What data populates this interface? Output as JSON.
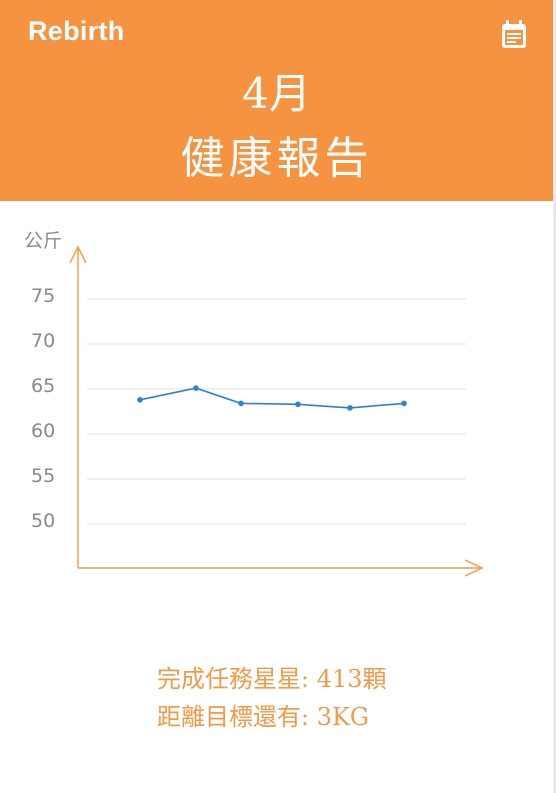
{
  "app": {
    "name": "Rebirth"
  },
  "header": {
    "month": "4月",
    "title": "健康報告",
    "calendar_icon": "calendar-icon",
    "color": "#f69340"
  },
  "chart_data": {
    "type": "line",
    "ylabel": "公斤",
    "xlabel": "",
    "y_ticks": [
      75,
      70,
      65,
      60,
      55,
      50
    ],
    "ylim": [
      45,
      80
    ],
    "grid": true,
    "series": [
      {
        "values": [
          63.8,
          65.1,
          63.4,
          63.3,
          62.9,
          63.4
        ]
      }
    ],
    "line_color": "#2e7fd6",
    "axis_color": "#f39a4a"
  },
  "stats": {
    "stars_label": "完成任務星星: 413顆",
    "goal_label": "距離目標還有: 3KG"
  }
}
